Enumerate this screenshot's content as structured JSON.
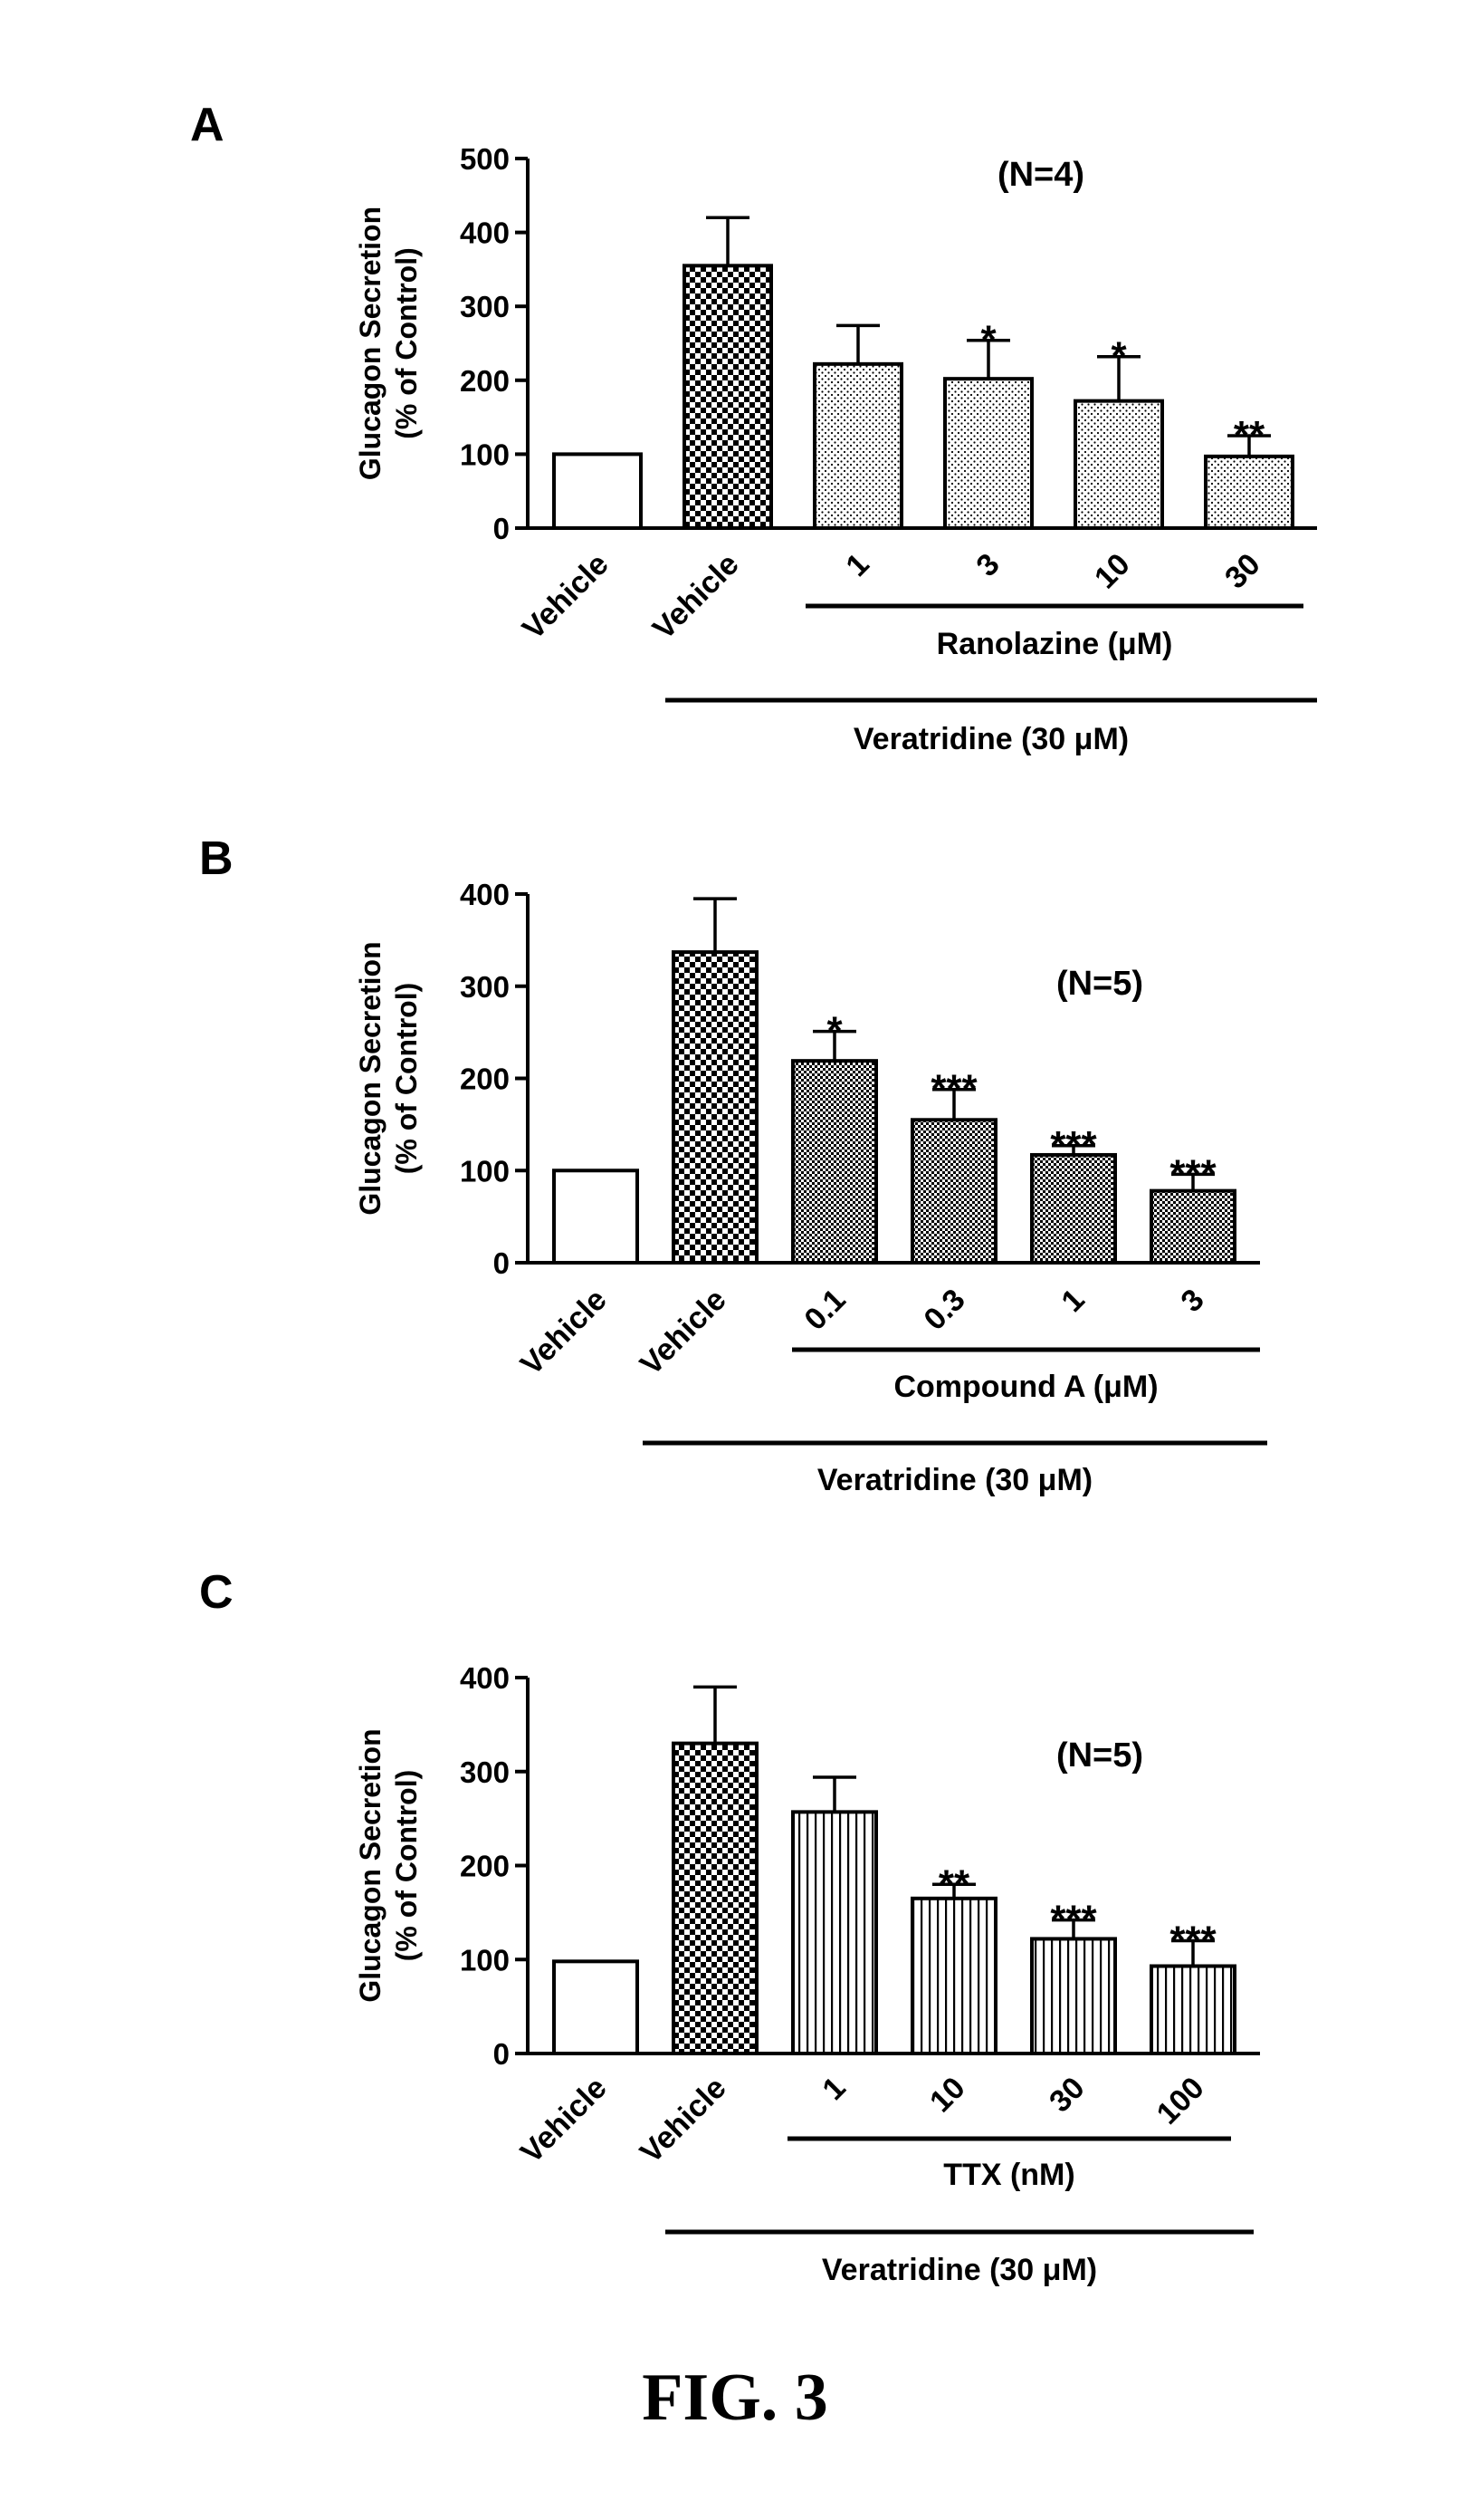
{
  "figure_caption": "FIG. 3",
  "chart_data": [
    {
      "panel_label": "A",
      "type": "bar",
      "ylabel": [
        "Glucagon Secretion",
        "(% of Control)"
      ],
      "ylim": [
        0,
        500
      ],
      "yticks": [
        0,
        100,
        200,
        300,
        400,
        500
      ],
      "annotation": "(N=4)",
      "categories": [
        "Vehicle",
        "Vehicle",
        "1",
        "3",
        "10",
        "30"
      ],
      "values": [
        100,
        355,
        222,
        202,
        172,
        97
      ],
      "errors": [
        0,
        65,
        52,
        52,
        60,
        28
      ],
      "significance": [
        "",
        "",
        "",
        "*",
        "*",
        "**"
      ],
      "patterns": [
        "white",
        "checker",
        "dots",
        "dots",
        "dots",
        "dots"
      ],
      "group_labels": [
        {
          "text": "Ranolazine (μM)",
          "from": 2,
          "to": 5
        },
        {
          "text": "Veratridine (30 μM)",
          "from": 1,
          "to": 5
        }
      ],
      "grid": false
    },
    {
      "panel_label": "B",
      "type": "bar",
      "ylabel": [
        "Glucagon Secretion",
        "(% of Control)"
      ],
      "ylim": [
        0,
        400
      ],
      "yticks": [
        0,
        100,
        200,
        300,
        400
      ],
      "annotation": "(N=5)",
      "categories": [
        "Vehicle",
        "Vehicle",
        "0.1",
        "0.3",
        "1",
        "3"
      ],
      "values": [
        100,
        337,
        219,
        155,
        117,
        78
      ],
      "errors": [
        0,
        58,
        32,
        33,
        10,
        18
      ],
      "significance": [
        "",
        "",
        "*",
        "***",
        "***",
        "***"
      ],
      "patterns": [
        "white",
        "checker",
        "fine",
        "fine",
        "fine",
        "fine"
      ],
      "group_labels": [
        {
          "text": "Compound A (μM)",
          "from": 2,
          "to": 5
        },
        {
          "text": "Veratridine (30 μM)",
          "from": 1,
          "to": 5
        }
      ],
      "grid": false
    },
    {
      "panel_label": "C",
      "type": "bar",
      "ylabel": [
        "Glucagon Secretion",
        "(% of Control)"
      ],
      "ylim": [
        0,
        400
      ],
      "yticks": [
        0,
        100,
        200,
        300,
        400
      ],
      "annotation": "(N=5)",
      "categories": [
        "Vehicle",
        "Vehicle",
        "1",
        "10",
        "30",
        "100"
      ],
      "values": [
        98,
        330,
        257,
        165,
        122,
        93
      ],
      "errors": [
        0,
        60,
        37,
        15,
        20,
        27
      ],
      "significance": [
        "",
        "",
        "",
        "**",
        "***",
        "***"
      ],
      "patterns": [
        "white",
        "checker",
        "vlines",
        "vlines",
        "vlines",
        "vlines"
      ],
      "group_labels": [
        {
          "text": "TTX (nM)",
          "from": 2,
          "to": 5
        },
        {
          "text": "Veratridine (30 μM)",
          "from": 1,
          "to": 5
        }
      ],
      "grid": false
    }
  ]
}
